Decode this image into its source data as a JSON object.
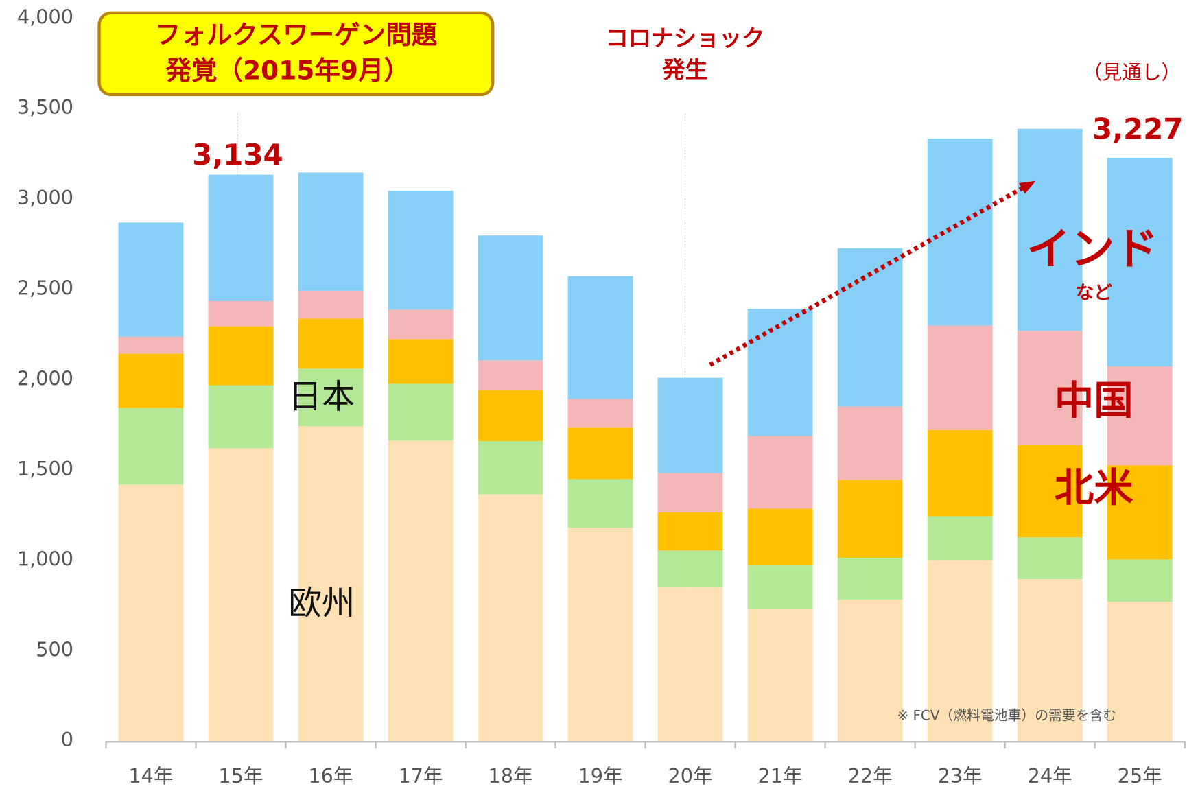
{
  "chart_data": {
    "type": "stacked_bar",
    "categories": [
      "14年",
      "15年",
      "16年",
      "17年",
      "18年",
      "19年",
      "20年",
      "21年",
      "22年",
      "23年",
      "24年",
      "25年"
    ],
    "series": [
      {
        "name": "欧州",
        "color": "#fde1b4",
        "values": [
          1420,
          1621,
          1742,
          1663,
          1365,
          1181,
          850,
          729,
          783,
          1001,
          896,
          771
        ]
      },
      {
        "name": "日本",
        "color": "#b3e896",
        "values": [
          423,
          348,
          319,
          314,
          294,
          268,
          205,
          243,
          231,
          243,
          231,
          234
        ]
      },
      {
        "name": "北米",
        "color": "#ffc000",
        "values": [
          301,
          326,
          276,
          247,
          284,
          285,
          210,
          314,
          431,
          477,
          511,
          520
        ]
      },
      {
        "name": "中国",
        "color": "#f4b6b6",
        "values": [
          93,
          139,
          155,
          163,
          164,
          159,
          218,
          402,
          406,
          578,
          632,
          548
        ]
      },
      {
        "name": "インド",
        "color": "#87cff7",
        "values": [
          632,
          700,
          654,
          658,
          691,
          679,
          527,
          704,
          876,
          1035,
          1118,
          1154
        ]
      }
    ],
    "ylim": [
      0,
      4000
    ],
    "yticks": [
      0,
      {
        "value": 500,
        "label": "500"
      },
      {
        "value": 1000,
        "label": "1,000"
      },
      {
        "value": 1500,
        "label": "1,500"
      },
      {
        "value": 2000,
        "label": "2,000"
      },
      {
        "value": 2500,
        "label": "2,500"
      },
      {
        "value": 3000,
        "label": "3,000"
      },
      {
        "value": 3500,
        "label": "3,500"
      },
      {
        "value": 4000,
        "label": "4,000"
      }
    ],
    "grid": false,
    "annotations": {
      "vw": [
        "フォルクスワーゲン問題",
        "発覚（2015年9月）"
      ],
      "corona": [
        "コロナショック",
        "発生"
      ],
      "forecast": "（見通し）",
      "total_15": "3,134",
      "total_25": "3,227",
      "india_sub": "など",
      "note": "※ FCV（燃料電池車）の需要を含む"
    }
  }
}
